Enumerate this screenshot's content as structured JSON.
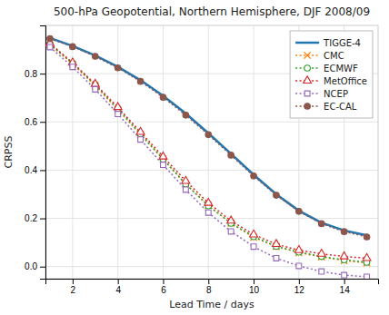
{
  "chart_data": {
    "type": "line",
    "title": "500-hPa Geopotential, Northern Hemisphere, DJF 2008/09",
    "xlabel": "Lead Time / days",
    "ylabel": "CRPSS",
    "xlim": [
      0.8,
      15.5
    ],
    "ylim": [
      -0.05,
      1.0
    ],
    "xticks": [
      2,
      4,
      6,
      8,
      10,
      12,
      14
    ],
    "yticks": [
      {
        "value": 0.0,
        "label": "0.0"
      },
      0.2,
      0.4,
      0.6,
      0.8
    ],
    "grid": true,
    "legend": "upper right",
    "x": [
      1,
      2,
      3,
      4,
      5,
      6,
      7,
      8,
      9,
      10,
      11,
      12,
      13,
      14,
      15
    ],
    "series": [
      {
        "name": "TIGGE-4",
        "line_style": "solid",
        "marker": "none",
        "values": [
          0.948,
          0.915,
          0.875,
          0.828,
          0.773,
          0.708,
          0.635,
          0.553,
          0.468,
          0.381,
          0.3,
          0.232,
          0.182,
          0.15,
          0.13
        ]
      },
      {
        "name": "CMC",
        "line_style": "dotted",
        "marker": "x",
        "values": [
          0.92,
          0.84,
          0.75,
          0.65,
          0.548,
          0.445,
          0.343,
          0.253,
          0.18,
          0.122,
          0.083,
          0.058,
          0.04,
          0.025,
          0.015
        ]
      },
      {
        "name": "ECMWF",
        "line_style": "dotted",
        "marker": "circle-open",
        "values": [
          0.922,
          0.843,
          0.754,
          0.655,
          0.55,
          0.445,
          0.342,
          0.252,
          0.18,
          0.124,
          0.084,
          0.06,
          0.042,
          0.028,
          0.018
        ]
      },
      {
        "name": "MetOffice",
        "line_style": "dotted",
        "marker": "triangle-open",
        "values": [
          0.926,
          0.845,
          0.757,
          0.661,
          0.558,
          0.456,
          0.355,
          0.264,
          0.19,
          0.133,
          0.093,
          0.068,
          0.053,
          0.042,
          0.035
        ]
      },
      {
        "name": "NCEP",
        "line_style": "dotted",
        "marker": "square-open",
        "values": [
          0.91,
          0.828,
          0.735,
          0.633,
          0.527,
          0.422,
          0.319,
          0.224,
          0.146,
          0.083,
          0.035,
          0.003,
          -0.02,
          -0.035,
          -0.042
        ]
      },
      {
        "name": "EC-CAL",
        "line_style": "dotted",
        "marker": "circle",
        "values": [
          0.945,
          0.912,
          0.872,
          0.824,
          0.768,
          0.702,
          0.628,
          0.547,
          0.462,
          0.376,
          0.296,
          0.229,
          0.178,
          0.145,
          0.123
        ]
      }
    ]
  }
}
